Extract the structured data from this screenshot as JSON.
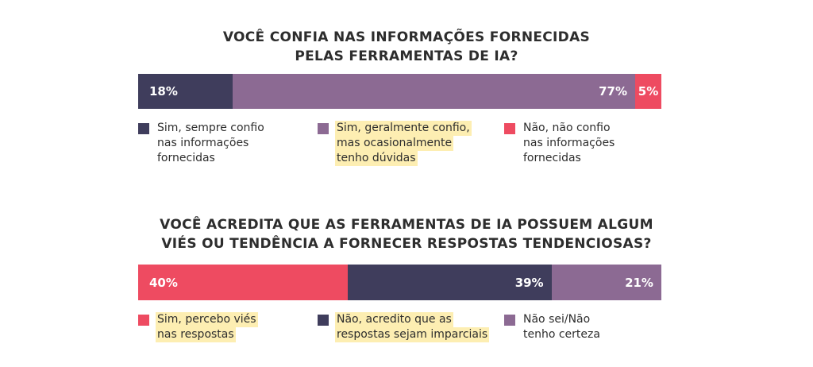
{
  "colors": {
    "navy": "#3f3d5c",
    "purple": "#8c6a93",
    "red": "#ee4b61",
    "highlight": "#fdeeb2"
  },
  "chart_data": [
    {
      "type": "bar",
      "orientation": "horizontal-stacked-100",
      "title_lines": [
        "VOCÊ CONFIA NAS INFORMAÇÕES FORNECIDAS",
        "PELAS FERRAMENTAS DE IA?"
      ],
      "segments": [
        {
          "value": 18,
          "label": "18%",
          "color": "#3f3d5c",
          "label_align": "left"
        },
        {
          "value": 77,
          "label": "77%",
          "color": "#8c6a93",
          "label_align": "right"
        },
        {
          "value": 5,
          "label": "5%",
          "color": "#ee4b61",
          "label_align": "center"
        }
      ],
      "legend": [
        {
          "color": "#3f3d5c",
          "lines": [
            "Sim, sempre confio",
            "nas informações",
            "fornecidas"
          ],
          "highlighted": false
        },
        {
          "color": "#8c6a93",
          "lines": [
            "Sim, geralmente confio,",
            "mas ocasionalmente",
            "tenho dúvidas"
          ],
          "highlighted": true
        },
        {
          "color": "#ee4b61",
          "lines": [
            "Não, não confio",
            "nas informações",
            "fornecidas"
          ],
          "highlighted": false
        }
      ]
    },
    {
      "type": "bar",
      "orientation": "horizontal-stacked-100",
      "title_lines": [
        "VOCÊ ACREDITA QUE AS FERRAMENTAS DE IA POSSUEM ALGUM",
        "VIÉS OU TENDÊNCIA A FORNECER RESPOSTAS TENDENCIOSAS?"
      ],
      "segments": [
        {
          "value": 40,
          "label": "40%",
          "color": "#ee4b61",
          "label_align": "left"
        },
        {
          "value": 39,
          "label": "39%",
          "color": "#3f3d5c",
          "label_align": "right"
        },
        {
          "value": 21,
          "label": "21%",
          "color": "#8c6a93",
          "label_align": "right"
        }
      ],
      "legend": [
        {
          "color": "#ee4b61",
          "lines": [
            "Sim, percebo viés",
            "nas respostas"
          ],
          "highlighted": true
        },
        {
          "color": "#3f3d5c",
          "lines": [
            "Não, acredito que as",
            "respostas sejam imparciais"
          ],
          "highlighted": true
        },
        {
          "color": "#8c6a93",
          "lines": [
            "Não sei/Não",
            "tenho certeza"
          ],
          "highlighted": false
        }
      ]
    }
  ]
}
